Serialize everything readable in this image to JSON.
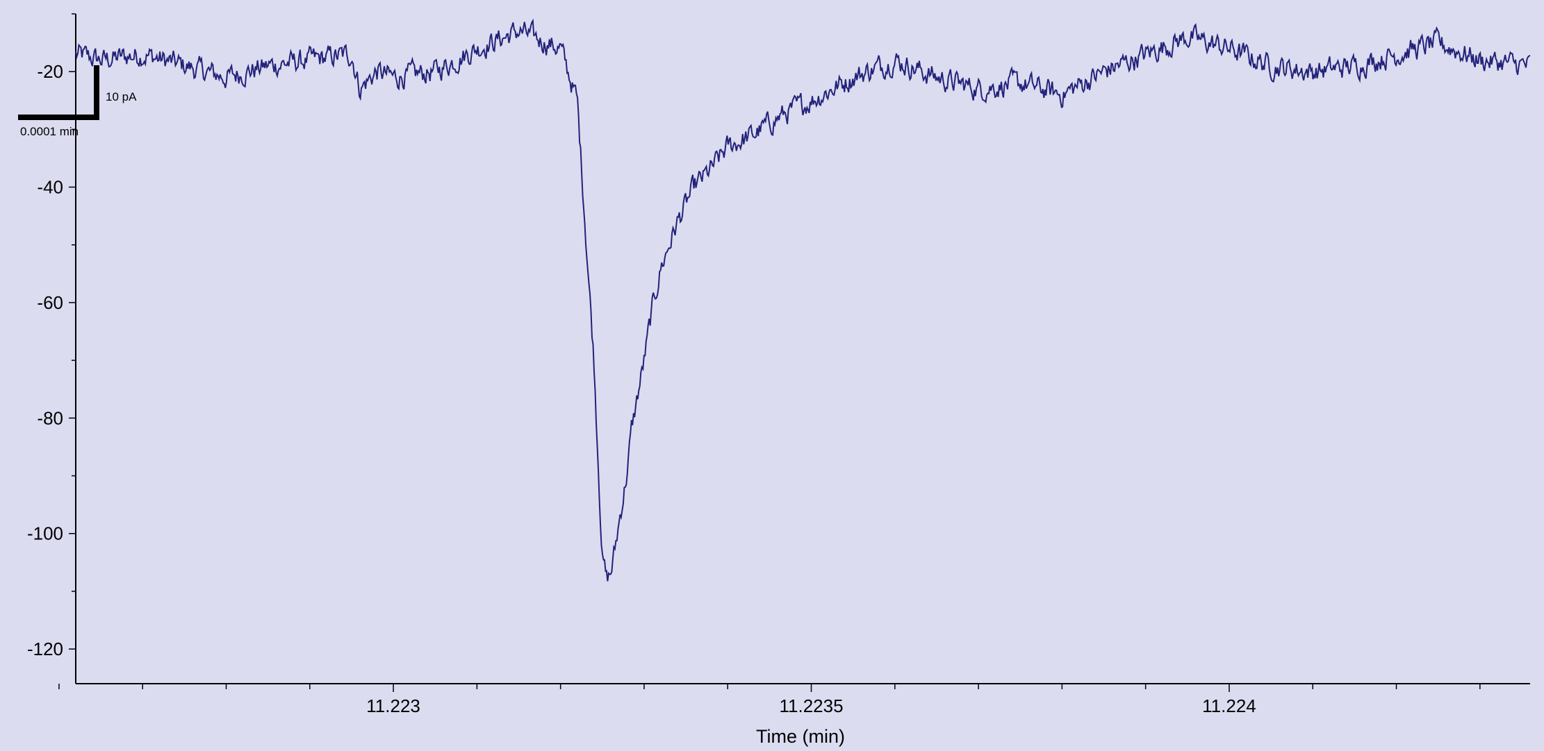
{
  "chart_data": {
    "type": "line",
    "title": "",
    "xlabel": "Time (min)",
    "ylabel": "",
    "xlim": [
      11.22262,
      11.22436
    ],
    "ylim": [
      -126,
      -10
    ],
    "x_ticks": [
      {
        "value": 11.223,
        "label": "11.223"
      },
      {
        "value": 11.2235,
        "label": "11.2235"
      },
      {
        "value": 11.224,
        "label": "11.224"
      }
    ],
    "x_minor_ticks": [
      11.2226,
      11.2227,
      11.2228,
      11.2229,
      11.2231,
      11.2232,
      11.2233,
      11.2234,
      11.2236,
      11.2237,
      11.2238,
      11.2239,
      11.2241,
      11.2242,
      11.2243
    ],
    "y_ticks": [
      {
        "value": -20,
        "label": "-20"
      },
      {
        "value": -40,
        "label": "-40"
      },
      {
        "value": -60,
        "label": "-60"
      },
      {
        "value": -80,
        "label": "-80"
      },
      {
        "value": -100,
        "label": "-100"
      },
      {
        "value": -120,
        "label": "-120"
      }
    ],
    "y_minor_ticks": [
      -10,
      -30,
      -50,
      -70,
      -90,
      -110
    ],
    "grid": false,
    "line_color": "#22227a",
    "background": "#dcdcf0",
    "scale_bar": {
      "y_label": "10 pA",
      "x_label": "0.0001 min"
    },
    "series": [
      {
        "x": [
          11.22262,
          11.22265,
          11.2227,
          11.22275,
          11.2228,
          11.22285,
          11.2229,
          11.22295,
          11.22296,
          11.22298,
          11.223,
          11.22305,
          11.2231,
          11.22315,
          11.2232,
          11.22322,
          11.22324,
          11.22325,
          11.223255,
          11.22326,
          11.223265,
          11.22327,
          11.22328,
          11.223285,
          11.22329,
          11.2233,
          11.22331,
          11.22332,
          11.22334,
          11.22336,
          11.22338,
          11.2234,
          11.22343,
          11.22346,
          11.2235,
          11.22355,
          11.2236,
          11.22365,
          11.2237,
          11.22375,
          11.2238,
          11.22385,
          11.2239,
          11.22395,
          11.224,
          11.22405,
          11.2241,
          11.22415,
          11.2242,
          11.22425,
          11.2243,
          11.22436
        ],
        "y": [
          -17,
          -18,
          -17,
          -19,
          -21,
          -19,
          -18,
          -17,
          -23,
          -20,
          -21,
          -20,
          -16,
          -13,
          -16,
          -25,
          -70,
          -104,
          -108,
          -107,
          -103,
          -98,
          -89,
          -82,
          -78,
          -70,
          -61,
          -54,
          -46,
          -40,
          -37,
          -33,
          -31,
          -28,
          -25,
          -21,
          -18,
          -21,
          -23,
          -22,
          -24,
          -20,
          -17,
          -14,
          -16,
          -19,
          -20,
          -19,
          -17,
          -15,
          -18,
          -19
        ]
      }
    ]
  }
}
